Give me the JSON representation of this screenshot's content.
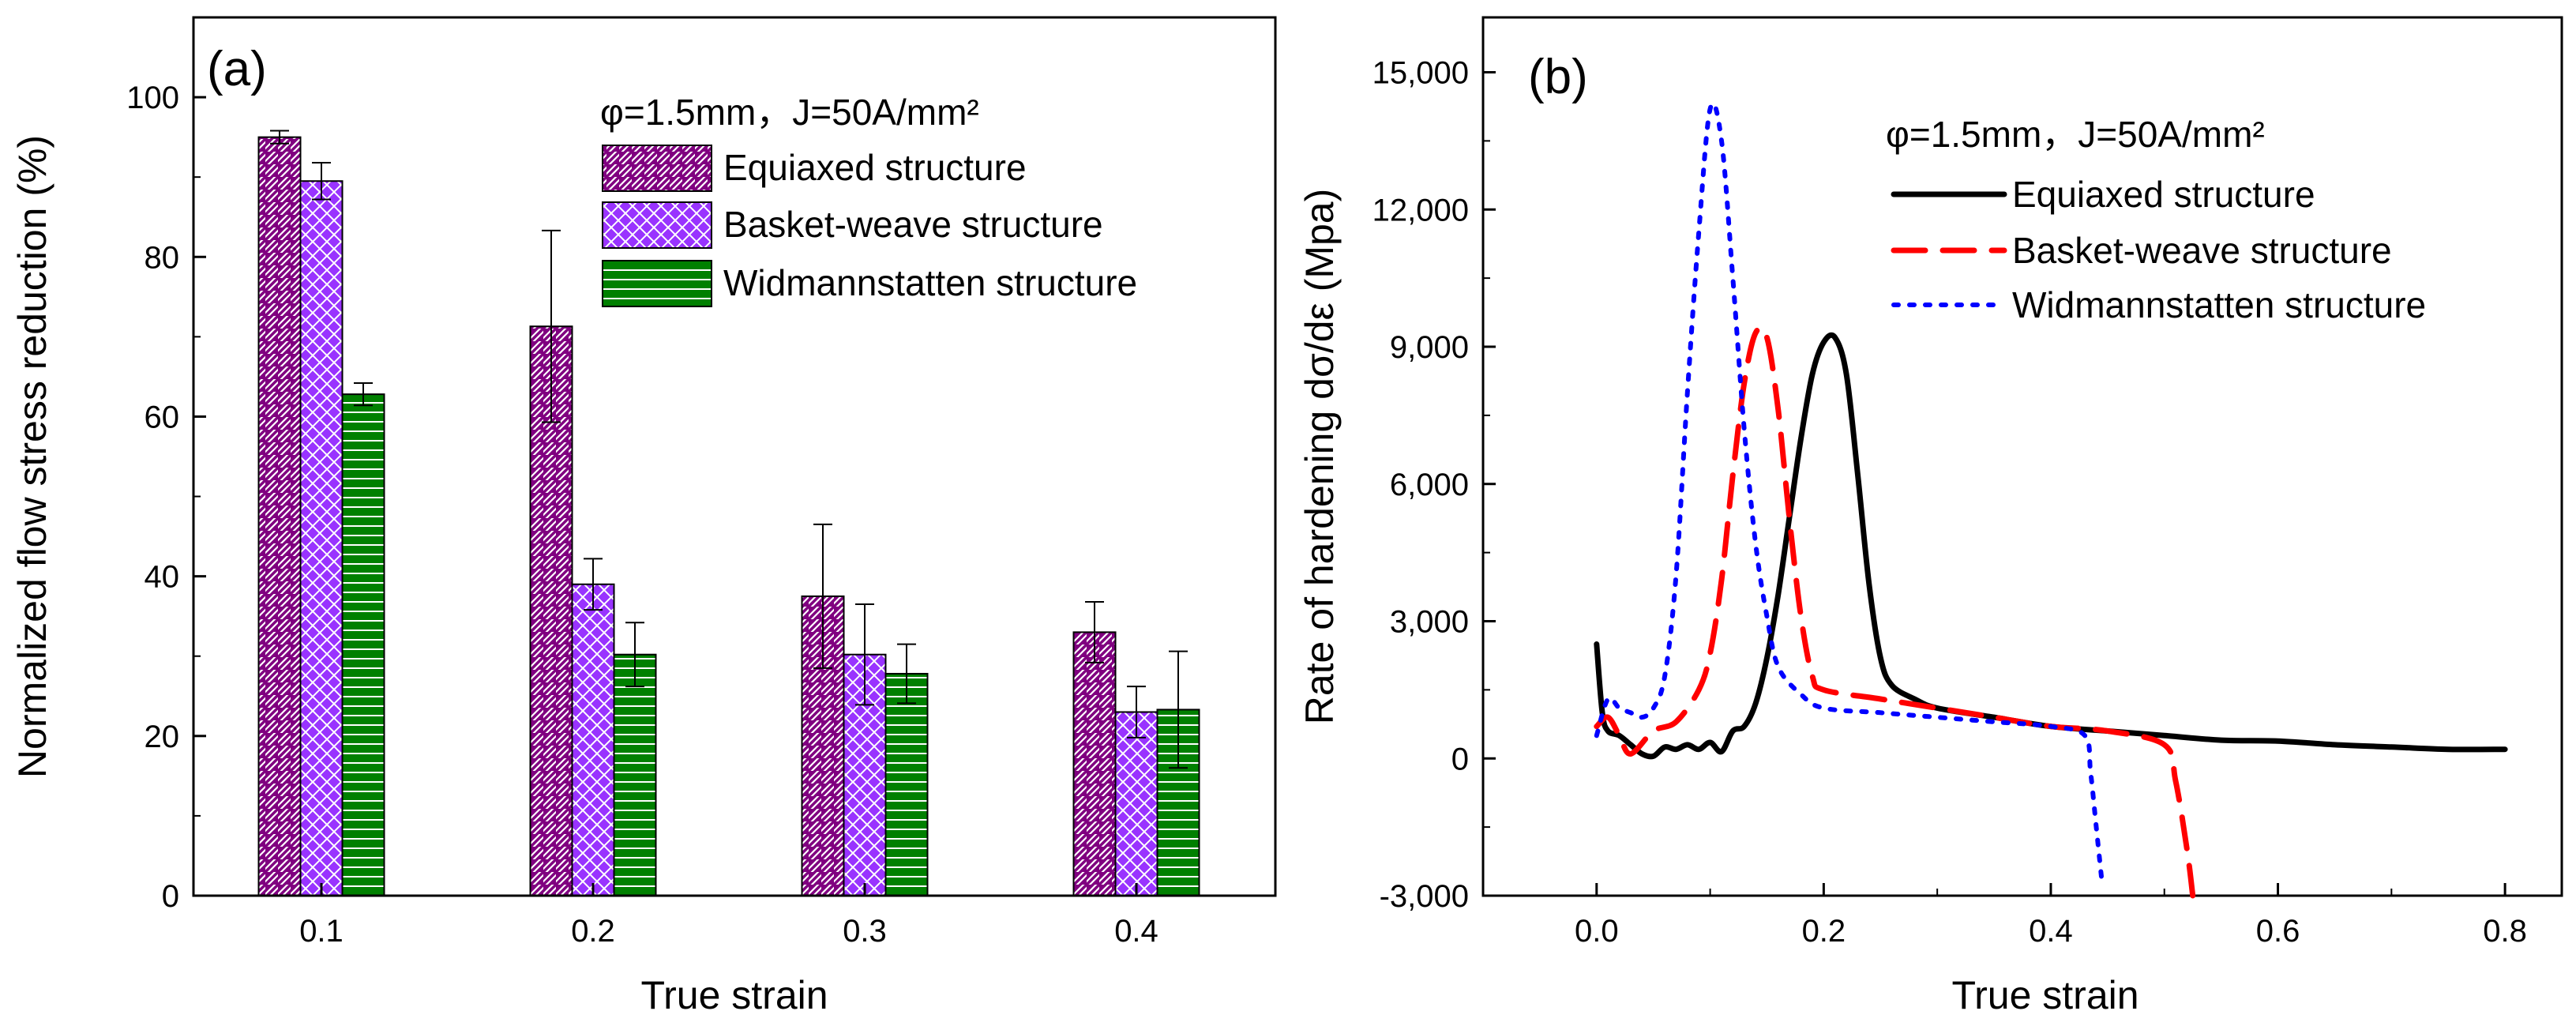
{
  "chart_data": [
    {
      "type": "bar",
      "panel_label": "(a)",
      "title": "",
      "legend_header": "φ=1.5mm，J=50A/mm²",
      "xlabel": "True strain",
      "ylabel": "Normalized flow stress reduction (%)",
      "ylim": [
        0,
        110
      ],
      "yticks": [
        0,
        20,
        40,
        60,
        80,
        100
      ],
      "categories": [
        "0.1",
        "0.2",
        "0.3",
        "0.4"
      ],
      "series": [
        {
          "name": "Equiaxed structure",
          "color": "#800080",
          "pattern": "diagonal",
          "values": [
            95,
            71.3,
            37.5,
            33
          ],
          "errors": [
            0.8,
            12,
            9,
            3.8
          ]
        },
        {
          "name": "Basket-weave structure",
          "color": "#9933ff",
          "pattern": "crosshatch",
          "values": [
            89.5,
            39,
            30.2,
            23
          ],
          "errors": [
            2.3,
            3.2,
            6.3,
            3.2
          ]
        },
        {
          "name": "Widmannstatten structure",
          "color": "#008000",
          "pattern": "horizontal",
          "values": [
            62.8,
            30.2,
            27.8,
            23.3
          ],
          "errors": [
            1.4,
            4,
            3.7,
            7.3
          ]
        }
      ]
    },
    {
      "type": "line",
      "panel_label": "(b)",
      "title": "",
      "legend_header": "φ=1.5mm，J=50A/mm²",
      "xlabel": "True strain",
      "ylabel": "Rate of hardening dσ/dε (Mpa)",
      "xlim": [
        -0.1,
        0.85
      ],
      "ylim": [
        -3000,
        16200
      ],
      "xticks": [
        "0.0",
        "0.2",
        "0.4",
        "0.6",
        "0.8"
      ],
      "yticks": [
        "-3,000",
        "0",
        "3,000",
        "6,000",
        "9,000",
        "12,000",
        "15,000"
      ],
      "series": [
        {
          "name": "Equiaxed structure",
          "color": "#000000",
          "style": "solid",
          "x": [
            0,
            0.005,
            0.01,
            0.02,
            0.03,
            0.04,
            0.05,
            0.06,
            0.07,
            0.08,
            0.09,
            0.1,
            0.11,
            0.12,
            0.13,
            0.14,
            0.15,
            0.16,
            0.17,
            0.18,
            0.19,
            0.2,
            0.21,
            0.22,
            0.23,
            0.24,
            0.25,
            0.26,
            0.28,
            0.3,
            0.35,
            0.4,
            0.45,
            0.5,
            0.55,
            0.6,
            0.65,
            0.7,
            0.75,
            0.8
          ],
          "y": [
            2500,
            1000,
            600,
            500,
            300,
            100,
            50,
            250,
            200,
            300,
            200,
            350,
            150,
            600,
            700,
            1200,
            2200,
            3600,
            5300,
            7000,
            8400,
            9100,
            9200,
            8400,
            6200,
            3800,
            2200,
            1600,
            1300,
            1100,
            900,
            700,
            600,
            500,
            400,
            380,
            300,
            250,
            200,
            200
          ]
        },
        {
          "name": "Basket-weave structure",
          "color": "#ff0000",
          "style": "dashed",
          "x": [
            0,
            0.01,
            0.02,
            0.03,
            0.05,
            0.07,
            0.09,
            0.1,
            0.11,
            0.12,
            0.13,
            0.14,
            0.15,
            0.16,
            0.17,
            0.18,
            0.19,
            0.2,
            0.25,
            0.3,
            0.35,
            0.4,
            0.45,
            0.5,
            0.51,
            0.52,
            0.525
          ],
          "y": [
            700,
            900,
            500,
            100,
            600,
            800,
            1500,
            2300,
            3900,
            6200,
            8200,
            9300,
            9200,
            7600,
            5200,
            3100,
            1800,
            1500,
            1300,
            1100,
            900,
            700,
            600,
            300,
            -500,
            -2000,
            -3000
          ]
        },
        {
          "name": "Widmannstatten structure",
          "color": "#0000ff",
          "style": "dotted",
          "x": [
            0,
            0.01,
            0.02,
            0.03,
            0.04,
            0.05,
            0.06,
            0.07,
            0.08,
            0.09,
            0.1,
            0.11,
            0.12,
            0.13,
            0.14,
            0.15,
            0.16,
            0.18,
            0.2,
            0.25,
            0.3,
            0.35,
            0.4,
            0.43,
            0.435,
            0.44,
            0.445
          ],
          "y": [
            500,
            1300,
            1100,
            1000,
            900,
            1100,
            1800,
            4000,
            8000,
            11500,
            14200,
            13500,
            10500,
            7200,
            4700,
            3100,
            2000,
            1400,
            1100,
            1000,
            900,
            800,
            700,
            500,
            -300,
            -1500,
            -2700
          ]
        }
      ]
    }
  ]
}
